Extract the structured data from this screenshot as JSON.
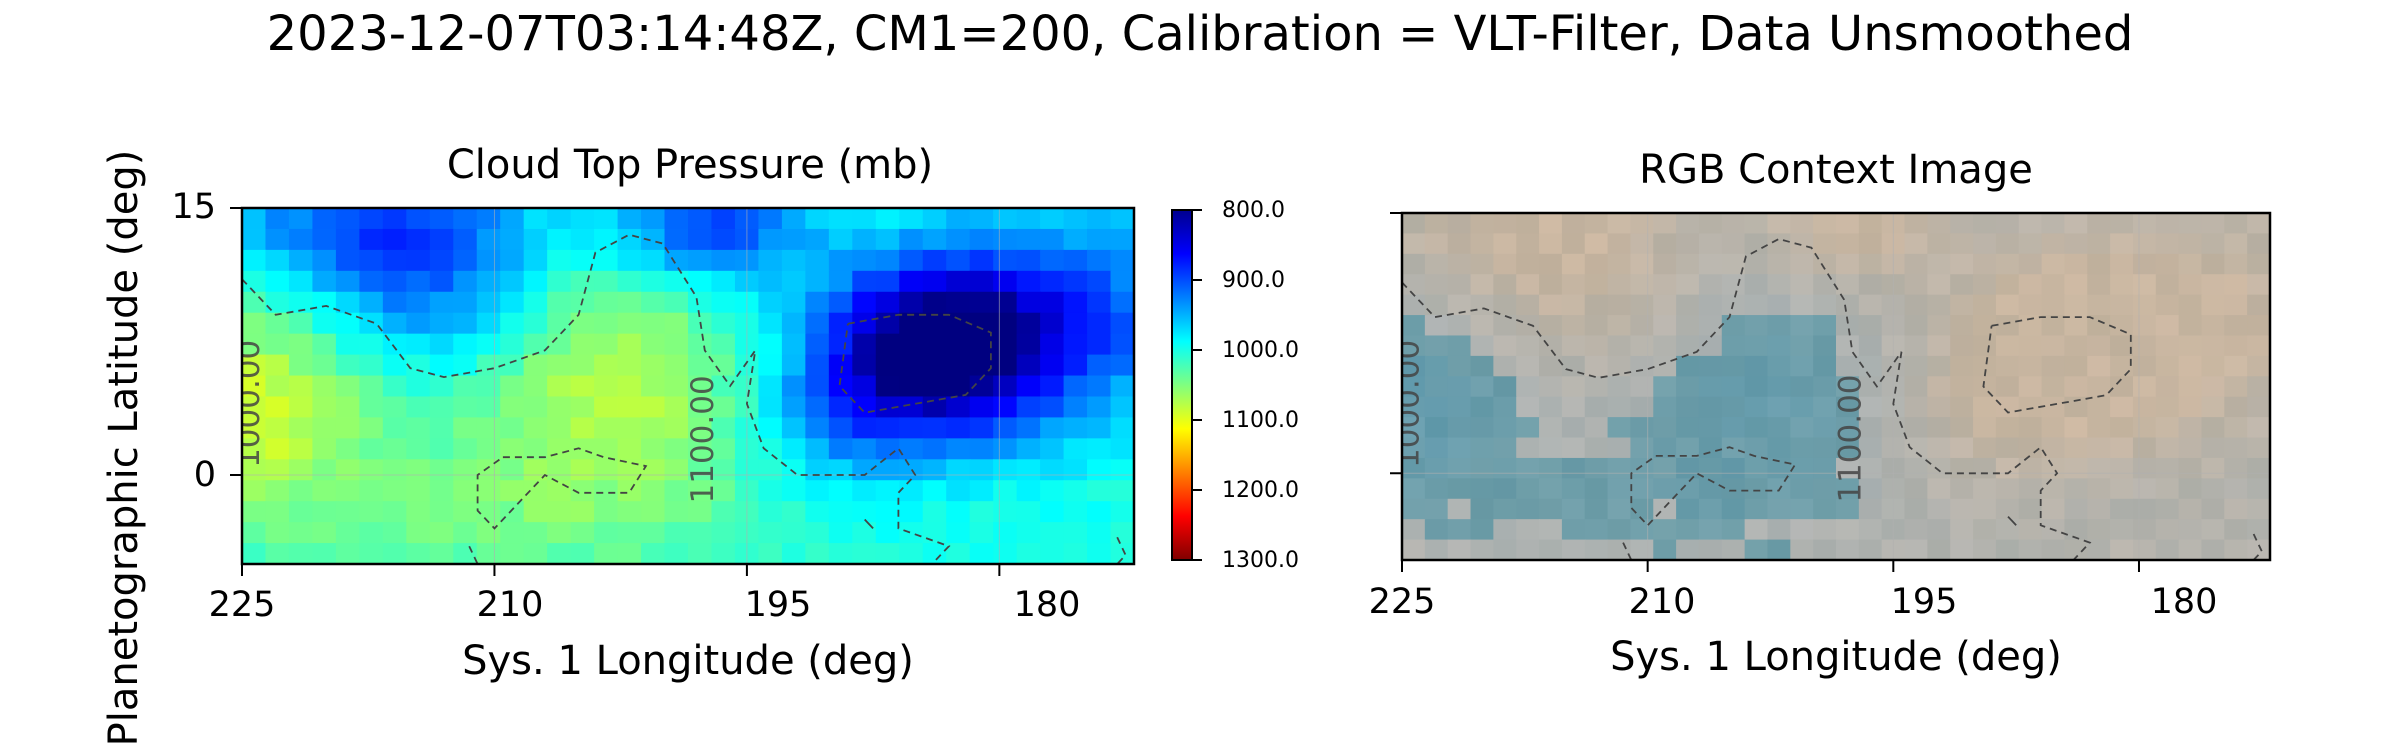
{
  "title": "2023-12-07T03:14:48Z, CM1=200, Calibration = VLT-Filter, Data Unsmoothed",
  "ylabel": "Planetographic Latitude (deg)",
  "chart_data": [
    {
      "type": "heatmap",
      "title": "Cloud Top Pressure (mb)",
      "xlabel": "Sys. 1 Longitude (deg)",
      "ylabel": "Planetographic Latitude (deg)",
      "xlim": [
        225,
        172
      ],
      "ylim": [
        -5,
        15
      ],
      "x_ticks": [
        "225",
        "210",
        "195",
        "180"
      ],
      "y_ticks": [
        "15",
        "0"
      ],
      "colorbar": {
        "colormap": "jet_r",
        "range": [
          800,
          1300
        ],
        "ticks": [
          "800.0",
          "900.0",
          "1000.0",
          "1100.0",
          "1200.0",
          "1300.0"
        ]
      },
      "contour_labels": [
        "1000.00",
        "1100.00"
      ],
      "contour_style": "dashed",
      "grid": true
    },
    {
      "type": "heatmap",
      "title": "RGB Context Image",
      "xlabel": "Sys. 1 Longitude (deg)",
      "xlim": [
        225,
        172
      ],
      "ylim": [
        -5,
        15
      ],
      "x_ticks": [
        "225",
        "210",
        "195",
        "180"
      ],
      "contour_labels": [
        "1000.00",
        "1100.00"
      ],
      "contour_style": "dashed",
      "grid": true
    }
  ]
}
